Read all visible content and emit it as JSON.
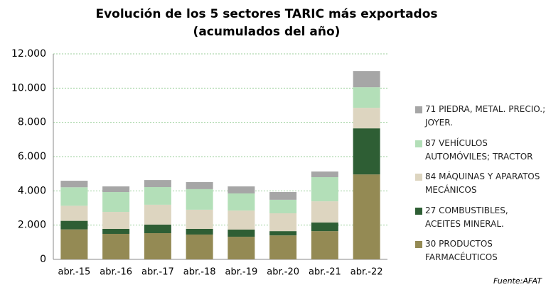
{
  "chart_data": {
    "type": "stacked_bar",
    "title": [
      "Evolución de los 5 sectores TARIC más exportados",
      "(acumulados del año)"
    ],
    "categories": [
      "abr.-15",
      "abr.-16",
      "abr.-17",
      "abr.-18",
      "abr.-19",
      "abr.-20",
      "abr.-21",
      "abr.-22"
    ],
    "series": [
      {
        "name": "30 PRODUCTOS FARMACÉUTICOS",
        "color": "#948a54",
        "values": [
          1750,
          1490,
          1530,
          1450,
          1320,
          1400,
          1650,
          4960
        ]
      },
      {
        "name": "27 COMBUSTIBLES, ACEITES MINERAL.",
        "color": "#2e5e34",
        "values": [
          500,
          290,
          500,
          330,
          420,
          250,
          500,
          2690
        ]
      },
      {
        "name": "84 MÁQUINAS Y APARATOS MECÁNICOS",
        "color": "#ddd5c0",
        "values": [
          880,
          990,
          1160,
          1120,
          1110,
          1040,
          1240,
          1200
        ]
      },
      {
        "name": "87 VEHÍCULOS AUTOMÓVILES; TRACTOR",
        "color": "#b3dfb8",
        "values": [
          1080,
          1160,
          1030,
          1200,
          1000,
          790,
          1410,
          1200
        ]
      },
      {
        "name": "71 PIEDRA, METAL. PRECIO.; JOYER.",
        "color": "#a6a6a6",
        "values": [
          380,
          330,
          410,
          410,
          410,
          450,
          330,
          950
        ]
      }
    ],
    "ylim": [
      0,
      12000
    ],
    "yticks": [
      0,
      {
        "value": 2000,
        "label": "2.000"
      },
      {
        "value": 4000,
        "label": "4.000"
      },
      {
        "value": 6000,
        "label": "6.000"
      },
      {
        "value": 8000,
        "label": "8.000"
      },
      {
        "value": 10000,
        "label": "10.000"
      },
      {
        "value": 12000,
        "label": "12.000"
      }
    ],
    "grid": true,
    "legend": "right",
    "source": "Fuente:AFAT"
  }
}
